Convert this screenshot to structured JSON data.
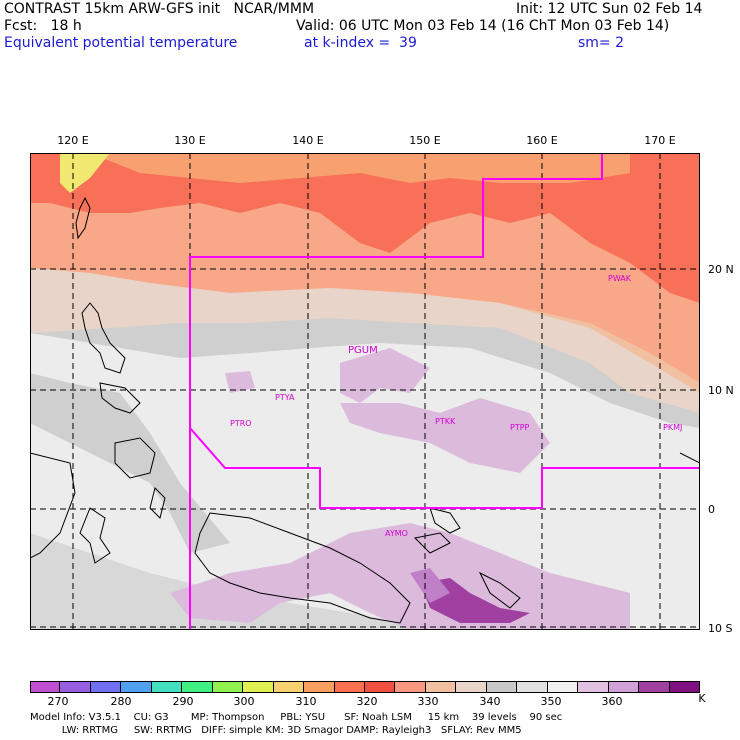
{
  "header": {
    "line1_left": "CONTRAST 15km ARW-GFS init   NCAR/MMM",
    "line1_right": "Init: 12 UTC Sun 02 Feb 14",
    "line2_left": "Fcst:   18 h",
    "line2_right": "Valid: 06 UTC Mon 03 Feb 14 (16 ChT Mon 03 Feb 14)",
    "line3_left": "Equivalent potential temperature",
    "line3_mid": "at k-index =  39",
    "line3_right": "sm= 2"
  },
  "map": {
    "lon_labels": [
      "120 E",
      "130 E",
      "140 E",
      "150 E",
      "160 E",
      "170 E"
    ],
    "lat_labels": [
      "20 N",
      "10 N",
      "0",
      "10 S"
    ],
    "stations": [
      "PGUM",
      "PTYA",
      "PTRO",
      "PTKK",
      "PTPP",
      "PKMJ",
      "PWAK",
      "AYMO"
    ],
    "colors": {
      "grid": "#000000",
      "boundary": "#ff00ff",
      "coast": "#000000"
    }
  },
  "colorbar": {
    "labels": [
      "270",
      "280",
      "290",
      "300",
      "310",
      "320",
      "330",
      "340",
      "350",
      "360",
      "K"
    ],
    "colors": [
      "#c050d0",
      "#9860e0",
      "#7070f0",
      "#50a0f0",
      "#40e0c0",
      "#40f080",
      "#90f050",
      "#e0f050",
      "#f8d070",
      "#f8a060",
      "#f87050",
      "#f05040",
      "#f89880",
      "#f0c0a0",
      "#e8d4c8",
      "#c8c8c8",
      "#e0e0e0",
      "#f0f0f0",
      "#e0c0e0",
      "#d0a0d8",
      "#a040a0",
      "#801080"
    ]
  },
  "footer": {
    "line1": "Model Info: V3.5.1    CU: G3       MP: Thompson     PBL: YSU      SF: Noah LSM     15 km    39 levels    90 sec",
    "line2": "          LW: RRTMG     SW: RRTMG   DIFF: simple KM: 3D Smagor DAMP: Rayleigh3   SFLAY: Rev MM5"
  }
}
